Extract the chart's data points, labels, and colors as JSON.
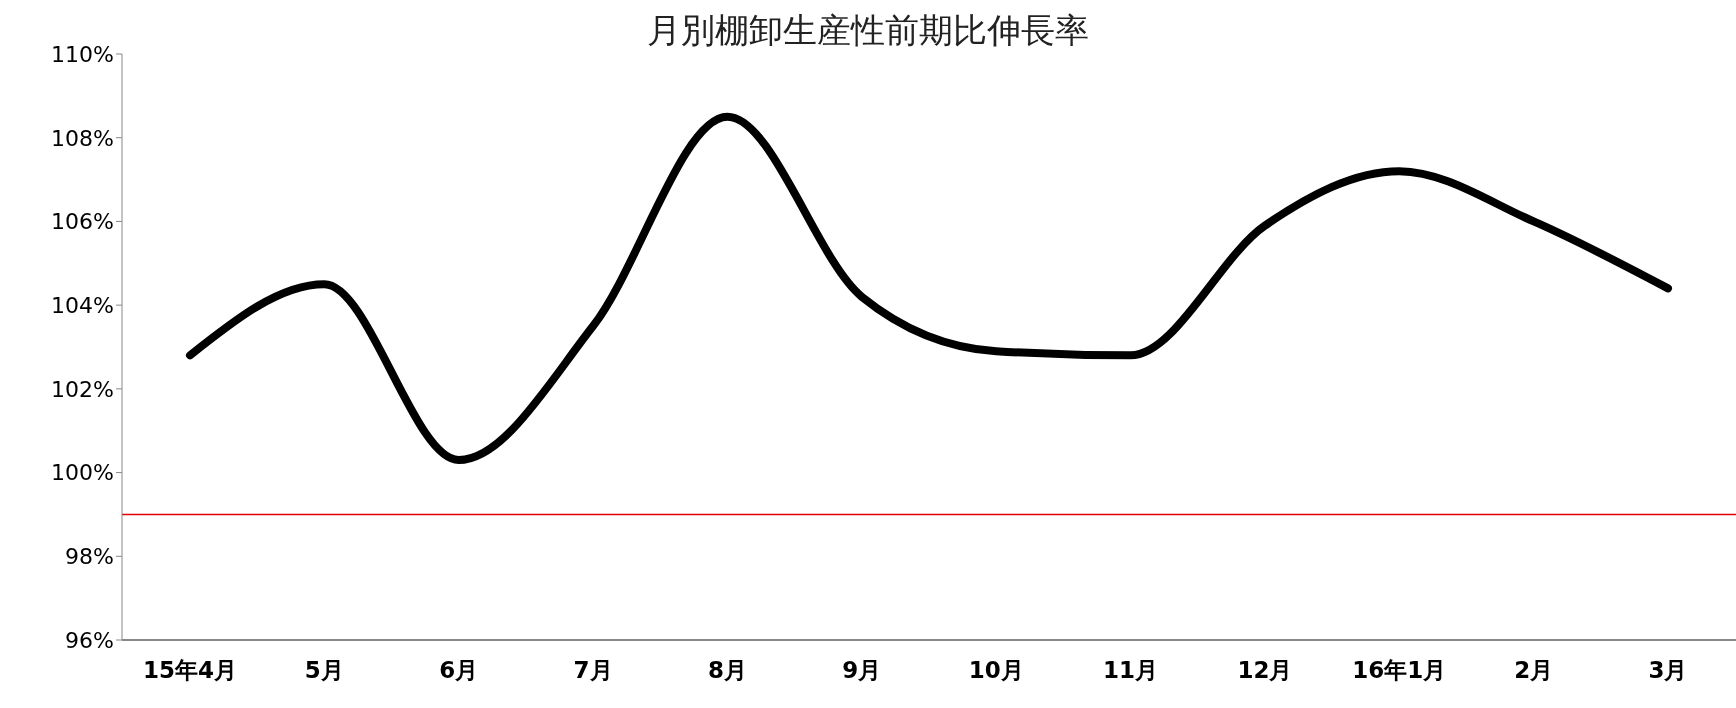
{
  "chart_data": {
    "type": "line",
    "title": "月別棚卸生産性前期比伸長率",
    "categories": [
      "15年4月",
      "5月",
      "6月",
      "7月",
      "8月",
      "9月",
      "10月",
      "11月",
      "12月",
      "16年1月",
      "2月",
      "3月"
    ],
    "series": [
      {
        "color": "#000000",
        "values": [
          102.8,
          104.5,
          100.3,
          103.5,
          108.5,
          104.2,
          102.9,
          102.8,
          105.9,
          107.2,
          106.0,
          104.4
        ]
      }
    ],
    "ylim": [
      96,
      110
    ],
    "yticks": [
      {
        "value": 96,
        "label": "96%"
      },
      {
        "value": 98,
        "label": "98%"
      },
      {
        "value": 100,
        "label": "100%"
      },
      {
        "value": 102,
        "label": "102%"
      },
      {
        "value": 104,
        "label": "104%"
      },
      {
        "value": 106,
        "label": "106%"
      },
      {
        "value": 108,
        "label": "108%"
      },
      {
        "value": 110,
        "label": "110%"
      }
    ],
    "ref_lines": [
      {
        "axis": "y",
        "value": 99,
        "color": "#e00000"
      }
    ],
    "grid": false,
    "legend": false,
    "marker": "none",
    "line_style": "solid"
  }
}
